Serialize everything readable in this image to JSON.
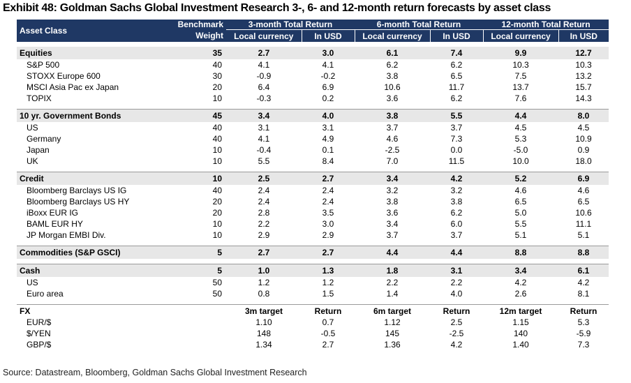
{
  "title": "Exhibit 48: Goldman Sachs Global Investment Research 3-, 6- and 12-month return forecasts by asset class",
  "header": {
    "asset_class": "Asset Class",
    "benchmark_1": "Benchmark",
    "benchmark_2": "Weight",
    "g3": "3-month Total Return",
    "g6": "6-month Total Return",
    "g12": "12-month Total Return",
    "local": "Local currency",
    "usd": "In USD"
  },
  "groups": {
    "equities": {
      "row": [
        "Equities",
        "35",
        "2.7",
        "3.0",
        "6.1",
        "7.4",
        "9.9",
        "12.7"
      ],
      "items": [
        [
          "S&P 500",
          "40",
          "4.1",
          "4.1",
          "6.2",
          "6.2",
          "10.3",
          "10.3"
        ],
        [
          "STOXX Europe 600",
          "30",
          "-0.9",
          "-0.2",
          "3.8",
          "6.5",
          "7.5",
          "13.2"
        ],
        [
          "MSCI Asia Pac ex Japan",
          "20",
          "6.4",
          "6.9",
          "10.6",
          "11.7",
          "13.7",
          "15.7"
        ],
        [
          "TOPIX",
          "10",
          "-0.3",
          "0.2",
          "3.6",
          "6.2",
          "7.6",
          "14.3"
        ]
      ]
    },
    "bonds": {
      "row": [
        "10 yr. Government Bonds",
        "45",
        "3.4",
        "4.0",
        "3.8",
        "5.5",
        "4.4",
        "8.0"
      ],
      "items": [
        [
          "US",
          "40",
          "3.1",
          "3.1",
          "3.7",
          "3.7",
          "4.5",
          "4.5"
        ],
        [
          "Germany",
          "40",
          "4.1",
          "4.9",
          "4.6",
          "7.3",
          "5.3",
          "10.9"
        ],
        [
          "Japan",
          "10",
          "-0.4",
          "0.1",
          "-2.5",
          "0.0",
          "-5.0",
          "0.9"
        ],
        [
          "UK",
          "10",
          "5.5",
          "8.4",
          "7.0",
          "11.5",
          "10.0",
          "18.0"
        ]
      ]
    },
    "credit": {
      "row": [
        "Credit",
        "10",
        "2.5",
        "2.7",
        "3.4",
        "4.2",
        "5.2",
        "6.9"
      ],
      "items": [
        [
          "Bloomberg Barclays US IG",
          "40",
          "2.4",
          "2.4",
          "3.2",
          "3.2",
          "4.6",
          "4.6"
        ],
        [
          "Bloomberg Barclays US HY",
          "20",
          "2.4",
          "2.4",
          "3.8",
          "3.8",
          "6.5",
          "6.5"
        ],
        [
          "iBoxx EUR IG",
          "20",
          "2.8",
          "3.5",
          "3.6",
          "6.2",
          "5.0",
          "10.6"
        ],
        [
          "BAML EUR HY",
          "10",
          "2.2",
          "3.0",
          "3.4",
          "6.0",
          "5.5",
          "11.1"
        ],
        [
          "JP Morgan EMBI Div.",
          "10",
          "2.9",
          "2.9",
          "3.7",
          "3.7",
          "5.1",
          "5.1"
        ]
      ]
    },
    "commodities": {
      "row": [
        "Commodities (S&P GSCI)",
        "5",
        "2.7",
        "2.7",
        "4.4",
        "4.4",
        "8.8",
        "8.8"
      ]
    },
    "cash": {
      "row": [
        "Cash",
        "5",
        "1.0",
        "1.3",
        "1.8",
        "3.1",
        "3.4",
        "6.1"
      ],
      "items": [
        [
          "US",
          "50",
          "1.2",
          "1.2",
          "2.2",
          "2.2",
          "4.2",
          "4.2"
        ],
        [
          "Euro area",
          "50",
          "0.8",
          "1.5",
          "1.4",
          "4.0",
          "2.6",
          "8.1"
        ]
      ]
    },
    "fx": {
      "row": [
        "FX",
        "",
        "3m target",
        "Return",
        "6m target",
        "Return",
        "12m target",
        "Return"
      ],
      "items": [
        [
          "EUR/$",
          "",
          "1.10",
          "0.7",
          "1.12",
          "2.5",
          "1.15",
          "5.3"
        ],
        [
          "$/YEN",
          "",
          "148",
          "-0.5",
          "145",
          "-2.5",
          "140",
          "-5.9"
        ],
        [
          "GBP/$",
          "",
          "1.34",
          "2.7",
          "1.36",
          "4.2",
          "1.40",
          "7.3"
        ]
      ]
    }
  },
  "source": "Source: Datastream, Bloomberg, Goldman Sachs Global Investment Research"
}
